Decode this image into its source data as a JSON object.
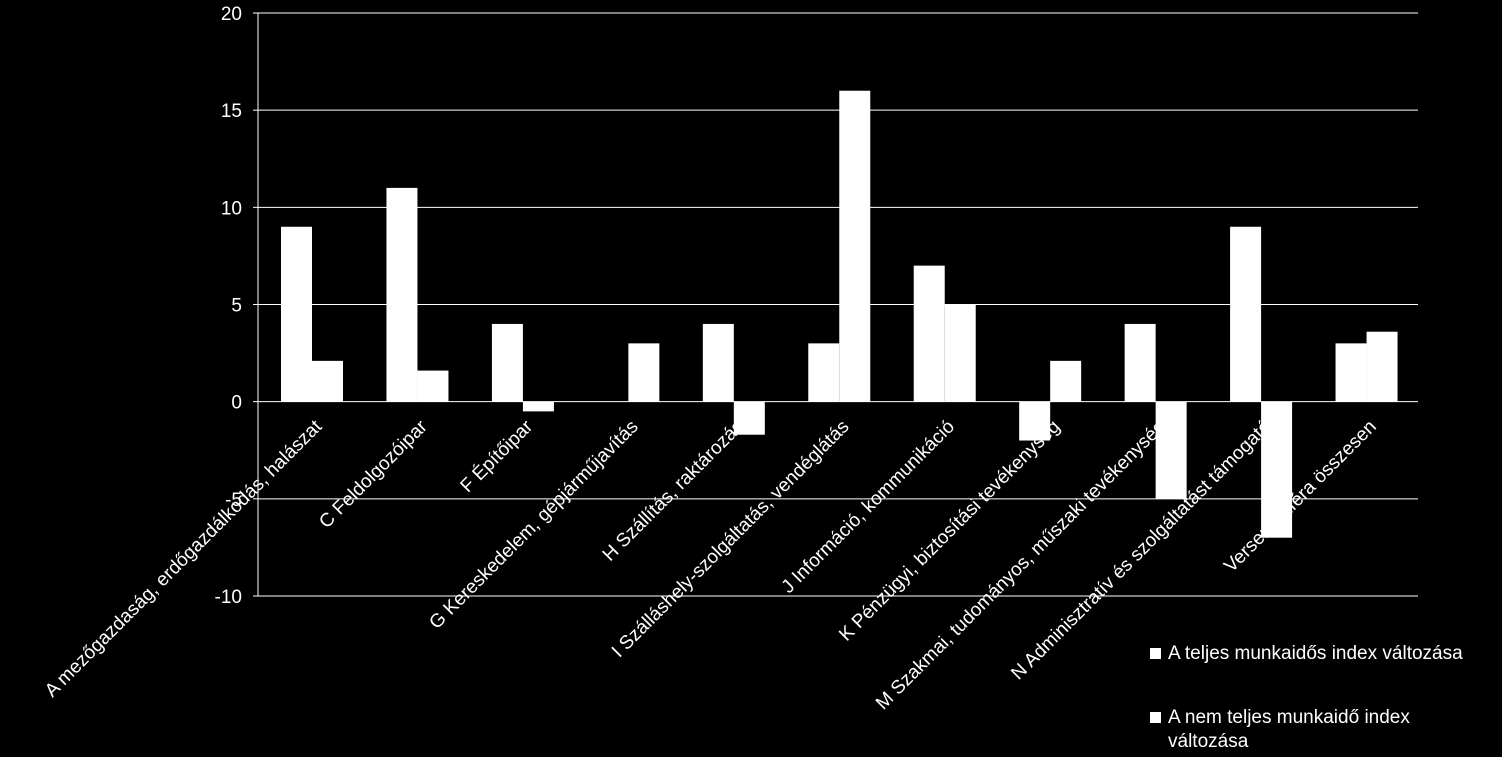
{
  "chart_data": {
    "type": "bar",
    "categories": [
      "A mezőgazdaság, erdőgazdálkodás, halászat",
      "C Feldolgozóipar",
      "F Építőipar",
      "G Kereskedelem, gépjárműjavítás",
      "H Szállítás, raktározás",
      "I Szálláshely-szolgáltatás, vendéglátás",
      "J Információ, kommunikáció",
      "K Pénzügyi, biztosítási tevékenység",
      "M Szakmai, tudományos, műszaki tevékenység",
      "N Adminisztratív és szolgáltatást támogató",
      "Versenyszféra összesen"
    ],
    "series": [
      {
        "name": "A teljes munkaidős index változása",
        "values": [
          9,
          11,
          4,
          0,
          4,
          3,
          7,
          -2,
          4,
          9,
          3
        ]
      },
      {
        "name": "A nem teljes munkaidő index változása",
        "values": [
          2.1,
          1.6,
          -0.5,
          3,
          -1.7,
          16,
          5,
          2.1,
          -5,
          -7,
          3.6
        ]
      }
    ],
    "yticks": [
      "20",
      "15",
      "10",
      "5",
      "0",
      "-5",
      "-10"
    ],
    "ylim": [
      -10,
      20
    ],
    "grid": true,
    "legend_position": "bottom-right",
    "colors": {
      "background": "#000000",
      "bars": "#ffffff",
      "grid": "#ffffff",
      "text": "#ffffff"
    }
  }
}
